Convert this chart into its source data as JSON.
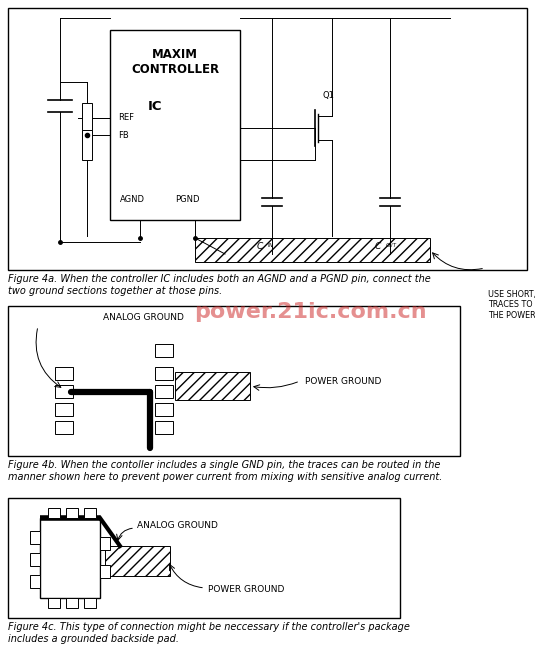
{
  "fig_width": 5.35,
  "fig_height": 6.52,
  "dpi": 100,
  "bg_color": "#ffffff",
  "line_color": "#000000",
  "caption_4a": "Figure 4a. When the controller IC includes both an AGND and a PGND pin, connect the\ntwo ground sections together at those pins.",
  "caption_4b": "Figure 4b. When the contoller includes a single GND pin, the traces can be routed in the\nmanner shown here to prevent power current from mixing with sensitive analog current.",
  "caption_4c": "Figure 4c. This type of connection might be neccessary if the controller's package\nincludes a grounded backside pad.",
  "label_analog_ground": "ANALOG GROUND",
  "label_power_ground": "POWER GROUND",
  "label_use_short": "USE SHORT, WIDE\nTRACES TO CONNECT\nTHE POWER COMPONENTS",
  "label_maxim": "MAXIM\nCONTROLLER\n IC",
  "label_ref": "REF",
  "label_fb": "FB",
  "label_agnd": "AGND",
  "label_pgnd": "PGND",
  "label_q1": "Q1",
  "watermark_text": "power.21ic.com.cn",
  "watermark_color": "#cc2222",
  "font_size_caption": 7.0,
  "font_size_label": 6.5,
  "font_size_pin": 6.0,
  "font_size_ic_title": 8.5
}
